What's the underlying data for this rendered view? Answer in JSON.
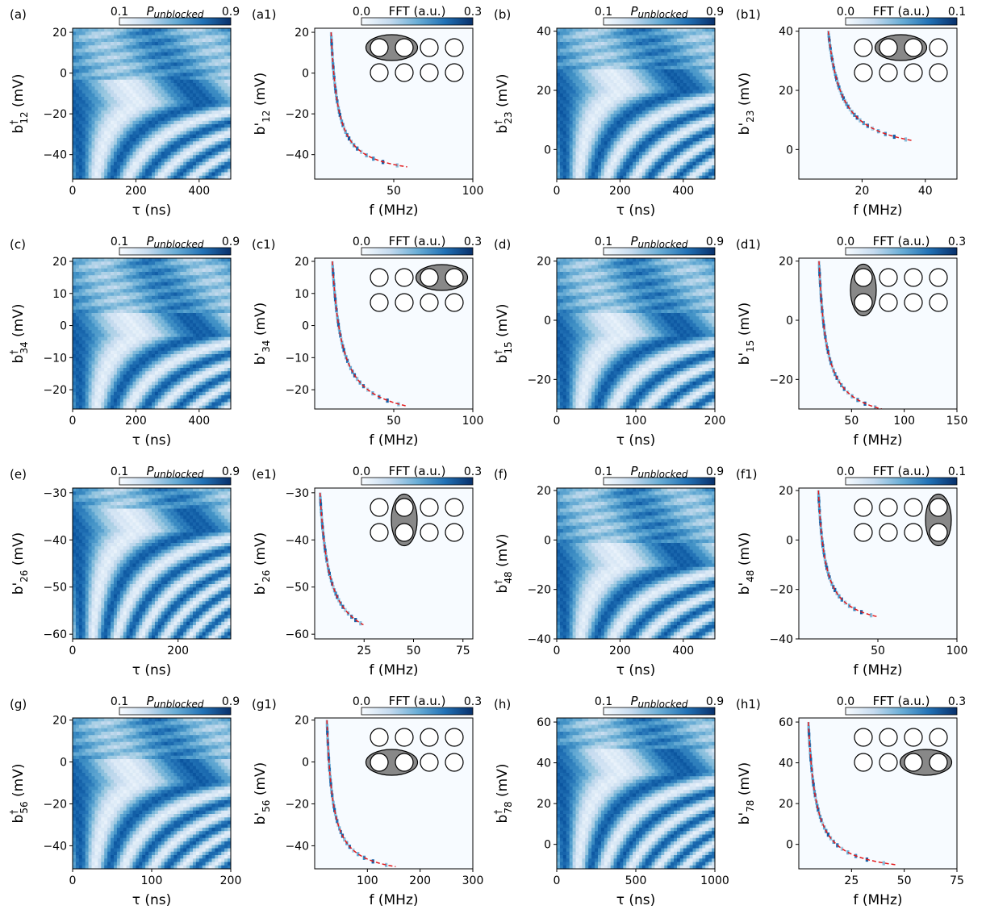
{
  "colorbar_colormap": "Blues",
  "fit_curve_color": "#e31a1c",
  "chart_data": [
    {
      "id": "a",
      "type": "heatmap",
      "panel_label": "(a)",
      "quantity": "time-oscillation",
      "colorbar": {
        "label": "P",
        "label_subscript": "unblocked",
        "min": "0.1",
        "max": "0.9"
      },
      "xlabel": "τ (ns)",
      "xlim": [
        0,
        500
      ],
      "xticks": [
        "0",
        "200",
        "400"
      ],
      "xtick_values": [
        0,
        200,
        400
      ],
      "ylabel_main": "b",
      "ylabel_sup": "†",
      "ylabel_sub": "12",
      "ylabel_unit": "(mV)",
      "ylim": [
        -52,
        22
      ],
      "yticks": [
        "−40",
        "−20",
        "0",
        "20"
      ],
      "ytick_values": [
        -40,
        -20,
        0,
        20
      ],
      "fringe_focus": -15,
      "fringe_period": 100
    },
    {
      "id": "a1",
      "type": "heatmap",
      "panel_label": "(a1)",
      "quantity": "fft",
      "colorbar": {
        "label": "FFT (a.u.)",
        "label_subscript": "",
        "min": "0.0",
        "max": "0.3"
      },
      "xlabel": "f (MHz)",
      "xlim": [
        0,
        100
      ],
      "xticks": [
        "50",
        "100"
      ],
      "xtick_values": [
        50,
        100
      ],
      "ylabel_main": "b'",
      "ylabel_sup": "",
      "ylabel_sub": "12",
      "ylabel_unit": "(mV)",
      "ylim": [
        -52,
        22
      ],
      "yticks": [
        "−40",
        "−20",
        "0",
        "20"
      ],
      "ytick_values": [
        -40,
        -20,
        0,
        20
      ],
      "fit_curve": {
        "x0": 6,
        "y_top": 20,
        "y_bottom": -46,
        "k": 315,
        "x_end": 100
      },
      "dot_diagram": {
        "highlight": [
          [
            0,
            0
          ],
          [
            0,
            1
          ]
        ],
        "orientation": "horizontal"
      }
    },
    {
      "id": "b",
      "type": "heatmap",
      "panel_label": "(b)",
      "quantity": "time-oscillation",
      "colorbar": {
        "label": "P",
        "label_subscript": "unblocked",
        "min": "0.1",
        "max": "0.9"
      },
      "xlabel": "τ (ns)",
      "xlim": [
        0,
        500
      ],
      "xticks": [
        "0",
        "200",
        "400"
      ],
      "xtick_values": [
        0,
        200,
        400
      ],
      "ylabel_main": "b",
      "ylabel_sup": "†",
      "ylabel_sub": "23",
      "ylabel_unit": "(mV)",
      "ylim": [
        -10,
        41
      ],
      "yticks": [
        "0",
        "20",
        "40"
      ],
      "ytick_values": [
        0,
        20,
        40
      ],
      "fringe_focus": 20,
      "fringe_period": 80
    },
    {
      "id": "b1",
      "type": "heatmap",
      "panel_label": "(b1)",
      "quantity": "fft",
      "colorbar": {
        "label": "FFT (a.u.)",
        "label_subscript": "",
        "min": "0.0",
        "max": "0.1"
      },
      "xlabel": "f (MHz)",
      "xlim": [
        0,
        50
      ],
      "xticks": [
        "20",
        "40"
      ],
      "xtick_values": [
        20,
        40
      ],
      "ylabel_main": "b'",
      "ylabel_sup": "",
      "ylabel_sub": "23",
      "ylabel_unit": "(mV)",
      "ylim": [
        -10,
        41
      ],
      "yticks": [
        "0",
        "20",
        "40"
      ],
      "ytick_values": [
        0,
        20,
        40
      ],
      "fit_curve": {
        "x0": 5,
        "y_top": 40,
        "y_bottom": 3,
        "k": 186,
        "x_end": 50
      },
      "dot_diagram": {
        "highlight": [
          [
            0,
            1
          ],
          [
            0,
            2
          ]
        ],
        "orientation": "horizontal"
      }
    },
    {
      "id": "c",
      "type": "heatmap",
      "panel_label": "(c)",
      "quantity": "time-oscillation",
      "colorbar": {
        "label": "P",
        "label_subscript": "unblocked",
        "min": "0.1",
        "max": "0.9"
      },
      "xlabel": "τ (ns)",
      "xlim": [
        0,
        500
      ],
      "xticks": [
        "0",
        "200",
        "400"
      ],
      "xtick_values": [
        0,
        200,
        400
      ],
      "ylabel_main": "b",
      "ylabel_sup": "†",
      "ylabel_sub": "34",
      "ylabel_unit": "(mV)",
      "ylim": [
        -26,
        21
      ],
      "yticks": [
        "−20",
        "−10",
        "0",
        "10",
        "20"
      ],
      "ytick_values": [
        -20,
        -10,
        0,
        10,
        20
      ],
      "fringe_focus": -3,
      "fringe_period": 100
    },
    {
      "id": "c1",
      "type": "heatmap",
      "panel_label": "(c1)",
      "quantity": "fft",
      "colorbar": {
        "label": "FFT (a.u.)",
        "label_subscript": "",
        "min": "0.0",
        "max": "0.3"
      },
      "xlabel": "f (MHz)",
      "xlim": [
        0,
        100
      ],
      "xticks": [
        "50",
        "100"
      ],
      "xtick_values": [
        50,
        100
      ],
      "ylabel_main": "b'",
      "ylabel_sup": "",
      "ylabel_sub": "34",
      "ylabel_unit": "(mV)",
      "ylim": [
        -26,
        21
      ],
      "yticks": [
        "−20",
        "−10",
        "0",
        "10",
        "20"
      ],
      "ytick_values": [
        -20,
        -10,
        0,
        10,
        20
      ],
      "fit_curve": {
        "x0": 5,
        "y_top": 20,
        "y_bottom": -25,
        "k": 315,
        "x_end": 84
      },
      "dot_diagram": {
        "highlight": [
          [
            0,
            2
          ],
          [
            0,
            3
          ]
        ],
        "orientation": "horizontal"
      }
    },
    {
      "id": "d",
      "type": "heatmap",
      "panel_label": "(d)",
      "quantity": "time-oscillation",
      "colorbar": {
        "label": "P",
        "label_subscript": "unblocked",
        "min": "0.1",
        "max": "0.9"
      },
      "xlabel": "τ (ns)",
      "xlim": [
        0,
        200
      ],
      "xticks": [
        "0",
        "100",
        "200"
      ],
      "xtick_values": [
        0,
        100,
        200
      ],
      "ylabel_main": "b",
      "ylabel_sup": "†",
      "ylabel_sub": "15",
      "ylabel_unit": "(mV)",
      "ylim": [
        -30,
        21
      ],
      "yticks": [
        "−20",
        "0",
        "20"
      ],
      "ytick_values": [
        -20,
        0,
        20
      ],
      "fringe_focus": -5,
      "fringe_period": 40
    },
    {
      "id": "d1",
      "type": "heatmap",
      "panel_label": "(d1)",
      "quantity": "fft",
      "colorbar": {
        "label": "FFT (a.u.)",
        "label_subscript": "",
        "min": "0.0",
        "max": "0.3"
      },
      "xlabel": "f (MHz)",
      "xlim": [
        0,
        150
      ],
      "xticks": [
        "50",
        "100",
        "150"
      ],
      "xtick_values": [
        50,
        100,
        150
      ],
      "ylabel_main": "b'",
      "ylabel_sup": "",
      "ylabel_sub": "15",
      "ylabel_unit": "(mV)",
      "ylim": [
        -30,
        21
      ],
      "yticks": [
        "−20",
        "0",
        "20"
      ],
      "ytick_values": [
        -20,
        0,
        20
      ],
      "fit_curve": {
        "x0": 12,
        "y_top": 20,
        "y_bottom": -30,
        "k": 400,
        "x_end": 95
      },
      "dot_diagram": {
        "highlight": [
          [
            0,
            0
          ],
          [
            1,
            0
          ]
        ],
        "orientation": "vertical"
      }
    },
    {
      "id": "e",
      "type": "heatmap",
      "panel_label": "(e)",
      "quantity": "time-oscillation",
      "colorbar": {
        "label": "P",
        "label_subscript": "unblocked",
        "min": "0.1",
        "max": "0.9"
      },
      "xlabel": "τ (ns)",
      "xlim": [
        0,
        300
      ],
      "xticks": [
        "0",
        "200"
      ],
      "xtick_values": [
        0,
        200
      ],
      "ylabel_main": "b'",
      "ylabel_sup": "",
      "ylabel_sub": "26",
      "ylabel_unit": "(mV)",
      "ylim": [
        -61,
        -29
      ],
      "yticks": [
        "−60",
        "−50",
        "−40",
        "−30"
      ],
      "ytick_values": [
        -60,
        -50,
        -40,
        -30
      ],
      "fringe_focus": -38,
      "fringe_period": 60
    },
    {
      "id": "e1",
      "type": "heatmap",
      "panel_label": "(e1)",
      "quantity": "fft",
      "colorbar": {
        "label": "FFT (a.u.)",
        "label_subscript": "",
        "min": "0.0",
        "max": "0.3"
      },
      "xlabel": "f (MHz)",
      "xlim": [
        0,
        80
      ],
      "xticks": [
        "25",
        "50",
        "75"
      ],
      "xtick_values": [
        25,
        50,
        75
      ],
      "ylabel_main": "b'",
      "ylabel_sup": "",
      "ylabel_sub": "26",
      "ylabel_unit": "(mV)",
      "ylim": [
        -61,
        -29
      ],
      "yticks": [
        "−60",
        "−50",
        "−40",
        "−30"
      ],
      "ytick_values": [
        -60,
        -50,
        -40,
        -30
      ],
      "fit_curve": {
        "x0": -2,
        "y_top": -30,
        "y_bottom": -58,
        "k": 160,
        "x_end": 80,
        "y_offset": -30
      },
      "dot_diagram": {
        "highlight": [
          [
            0,
            1
          ],
          [
            1,
            1
          ]
        ],
        "orientation": "vertical"
      }
    },
    {
      "id": "f",
      "type": "heatmap",
      "panel_label": "(f)",
      "quantity": "time-oscillation",
      "colorbar": {
        "label": "P",
        "label_subscript": "unblocked",
        "min": "0.1",
        "max": "0.9"
      },
      "xlabel": "τ (ns)",
      "xlim": [
        0,
        500
      ],
      "xticks": [
        "0",
        "200",
        "400"
      ],
      "xtick_values": [
        0,
        200,
        400
      ],
      "ylabel_main": "b",
      "ylabel_sup": "†",
      "ylabel_sub": "48",
      "ylabel_unit": "(mV)",
      "ylim": [
        -40,
        21
      ],
      "yticks": [
        "−40",
        "−20",
        "0",
        "20"
      ],
      "ytick_values": [
        -40,
        -20,
        0,
        20
      ],
      "fringe_focus": -10,
      "fringe_period": 90
    },
    {
      "id": "f1",
      "type": "heatmap",
      "panel_label": "(f1)",
      "quantity": "fft",
      "colorbar": {
        "label": "FFT (a.u.)",
        "label_subscript": "",
        "min": "0.0",
        "max": "0.1"
      },
      "xlabel": "f (MHz)",
      "xlim": [
        0,
        100
      ],
      "xticks": [
        "50",
        "100"
      ],
      "xtick_values": [
        50,
        100
      ],
      "ylabel_main": "b'",
      "ylabel_sup": "",
      "ylabel_sub": "48",
      "ylabel_unit": "(mV)",
      "ylim": [
        -40,
        21
      ],
      "yticks": [
        "−40",
        "−20",
        "0",
        "20"
      ],
      "ytick_values": [
        -40,
        -20,
        0,
        20
      ],
      "fit_curve": {
        "x0": 8,
        "y_top": 20,
        "y_bottom": -31,
        "k": 250,
        "x_end": 100
      },
      "dot_diagram": {
        "highlight": [
          [
            0,
            3
          ],
          [
            1,
            3
          ]
        ],
        "orientation": "vertical"
      }
    },
    {
      "id": "g",
      "type": "heatmap",
      "panel_label": "(g)",
      "quantity": "time-oscillation",
      "colorbar": {
        "label": "P",
        "label_subscript": "unblocked",
        "min": "0.1",
        "max": "0.9"
      },
      "xlabel": "τ (ns)",
      "xlim": [
        0,
        200
      ],
      "xticks": [
        "0",
        "100",
        "200"
      ],
      "xtick_values": [
        0,
        100,
        200
      ],
      "ylabel_main": "b",
      "ylabel_sup": "†",
      "ylabel_sub": "56",
      "ylabel_unit": "(mV)",
      "ylim": [
        -51,
        21
      ],
      "yticks": [
        "−40",
        "−20",
        "0",
        "20"
      ],
      "ytick_values": [
        -40,
        -20,
        0,
        20
      ],
      "fringe_focus": -10,
      "fringe_period": 45
    },
    {
      "id": "g1",
      "type": "heatmap",
      "panel_label": "(g1)",
      "quantity": "fft",
      "colorbar": {
        "label": "FFT (a.u.)",
        "label_subscript": "",
        "min": "0.0",
        "max": "0.3"
      },
      "xlabel": "f (MHz)",
      "xlim": [
        0,
        300
      ],
      "xticks": [
        "100",
        "200",
        "300"
      ],
      "xtick_values": [
        100,
        200,
        300
      ],
      "ylabel_main": "b'",
      "ylabel_sup": "",
      "ylabel_sub": "56",
      "ylabel_unit": "(mV)",
      "ylim": [
        -51,
        21
      ],
      "yticks": [
        "−40",
        "−20",
        "0",
        "20"
      ],
      "ytick_values": [
        -40,
        -20,
        0,
        20
      ],
      "fit_curve": {
        "x0": 12,
        "y_top": 20,
        "y_bottom": -50,
        "k": 850,
        "x_end": 300
      },
      "dot_diagram": {
        "highlight": [
          [
            1,
            0
          ],
          [
            1,
            1
          ]
        ],
        "orientation": "horizontal"
      }
    },
    {
      "id": "h",
      "type": "heatmap",
      "panel_label": "(h)",
      "quantity": "time-oscillation",
      "colorbar": {
        "label": "P",
        "label_subscript": "unblocked",
        "min": "0.1",
        "max": "0.9"
      },
      "xlabel": "τ (ns)",
      "xlim": [
        0,
        1000
      ],
      "xticks": [
        "0",
        "500",
        "1000"
      ],
      "xtick_values": [
        0,
        500,
        1000
      ],
      "ylabel_main": "b",
      "ylabel_sup": "†",
      "ylabel_sub": "78",
      "ylabel_unit": "(mV)",
      "ylim": [
        -12,
        62
      ],
      "yticks": [
        "0",
        "20",
        "40",
        "60"
      ],
      "ytick_values": [
        0,
        20,
        40,
        60
      ],
      "fringe_focus": 35,
      "fringe_period": 180
    },
    {
      "id": "h1",
      "type": "heatmap",
      "panel_label": "(h1)",
      "quantity": "fft",
      "colorbar": {
        "label": "FFT (a.u.)",
        "label_subscript": "",
        "min": "0.0",
        "max": "0.3"
      },
      "xlabel": "f (MHz)",
      "xlim": [
        0,
        75
      ],
      "xticks": [
        "25",
        "50",
        "75"
      ],
      "xtick_values": [
        25,
        50,
        75
      ],
      "ylabel_main": "b'",
      "ylabel_sup": "",
      "ylabel_sub": "78",
      "ylabel_unit": "(mV)",
      "ylim": [
        -12,
        62
      ],
      "yticks": [
        "0",
        "20",
        "40",
        "60"
      ],
      "ytick_values": [
        0,
        20,
        40,
        60
      ],
      "fit_curve": {
        "x0": 1,
        "y_top": 60,
        "y_bottom": -10,
        "k": 270,
        "x_end": 75,
        "y_offset": -20
      },
      "dot_diagram": {
        "highlight": [
          [
            1,
            2
          ],
          [
            1,
            3
          ]
        ],
        "orientation": "horizontal"
      }
    }
  ]
}
